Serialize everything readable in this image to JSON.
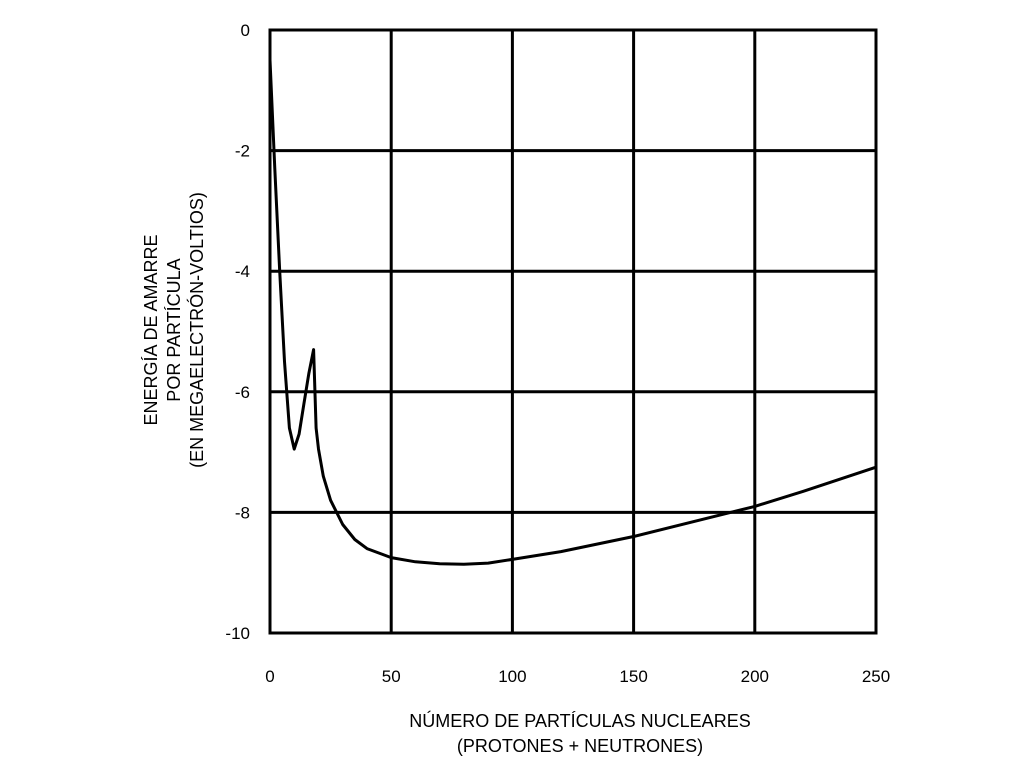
{
  "chart_data": {
    "type": "line",
    "title": "",
    "xlabel": [
      "NÚMERO DE PARTÍCULAS NUCLEARES",
      "(PROTONES + NEUTRONES)"
    ],
    "ylabel": [
      "ENERGÍA DE AMARRE",
      "POR PARTÍCULA",
      "(EN MEGAELECTRÓN-VOLTIOS)"
    ],
    "xlim": [
      0,
      250
    ],
    "ylim": [
      -10,
      0
    ],
    "grid": true,
    "x_ticks": [
      0,
      50,
      100,
      150,
      200,
      250
    ],
    "x_tick_labels": [
      "0",
      "50",
      "100",
      "150",
      "200",
      "250"
    ],
    "y_ticks": [
      0,
      -2,
      -4,
      -6,
      -8,
      -10
    ],
    "y_tick_labels": [
      "0",
      "-2",
      "-4",
      "-6",
      "-8",
      "-10"
    ],
    "series": [
      {
        "x": [
          0,
          2,
          4,
          6,
          8,
          10,
          12,
          14,
          16,
          18,
          19,
          20,
          22,
          25,
          30,
          35,
          40,
          50,
          60,
          70,
          80,
          90,
          100,
          120,
          150,
          180,
          200,
          220,
          250
        ],
        "y": [
          -0.5,
          -2.3,
          -4.0,
          -5.5,
          -6.6,
          -6.95,
          -6.7,
          -6.2,
          -5.7,
          -5.3,
          -6.6,
          -6.95,
          -7.4,
          -7.8,
          -8.2,
          -8.45,
          -8.6,
          -8.75,
          -8.82,
          -8.85,
          -8.86,
          -8.84,
          -8.78,
          -8.65,
          -8.4,
          -8.1,
          -7.9,
          -7.65,
          -7.25
        ]
      }
    ]
  }
}
